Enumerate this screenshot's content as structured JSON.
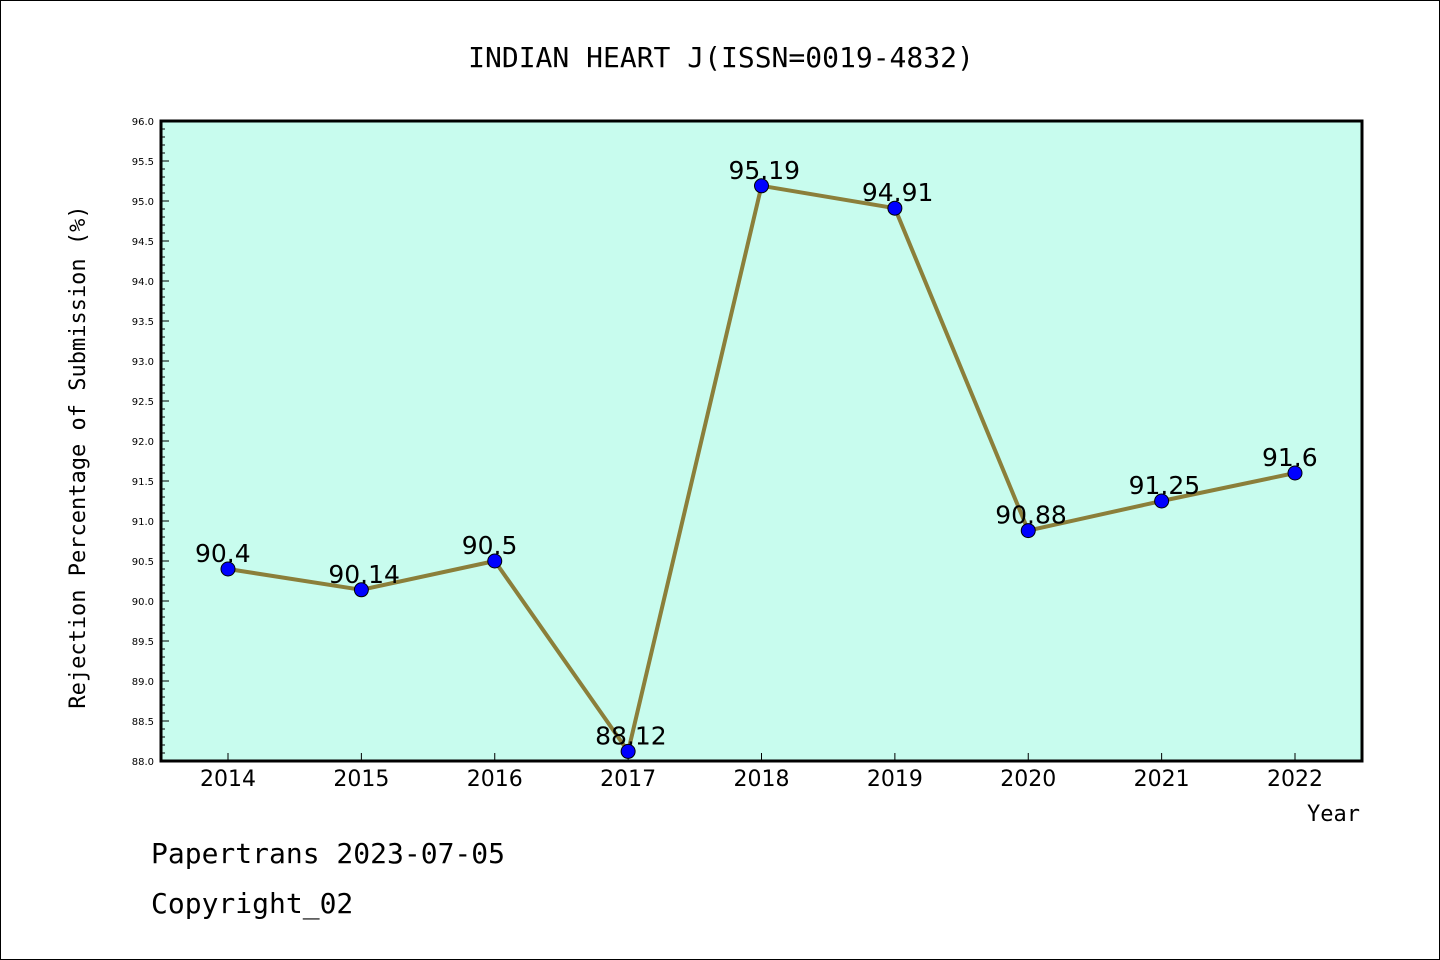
{
  "chart_data": {
    "type": "line",
    "title": "INDIAN HEART J(ISSN=0019-4832)",
    "xlabel": "Year",
    "ylabel": "Rejection Percentage of Submission (%)",
    "categories": [
      "2014",
      "2015",
      "2016",
      "2017",
      "2018",
      "2019",
      "2020",
      "2021",
      "2022"
    ],
    "values": [
      90.4,
      90.14,
      90.5,
      88.12,
      95.19,
      94.91,
      90.88,
      91.25,
      91.6
    ],
    "data_labels": [
      "90.4",
      "90.14",
      "90.5",
      "88.12",
      "95.19",
      "94.91",
      "90.88",
      "91.25",
      "91.6"
    ],
    "ylim": [
      88.0,
      96.0
    ],
    "y_ticks": [
      "88.0",
      "88.5",
      "89.0",
      "89.5",
      "90.0",
      "90.5",
      "91.0",
      "91.5",
      "92.0",
      "92.5",
      "93.0",
      "93.5",
      "94.0",
      "94.5",
      "95.0",
      "95.5",
      "96.0"
    ],
    "grid": false,
    "colors": {
      "plot_background": "#c8fcee",
      "line": "#8b7f3a",
      "marker": "#0000ff"
    }
  },
  "footer": {
    "date_line": "Papertrans 2023-07-05",
    "copyright_line": "Copyright_02"
  }
}
